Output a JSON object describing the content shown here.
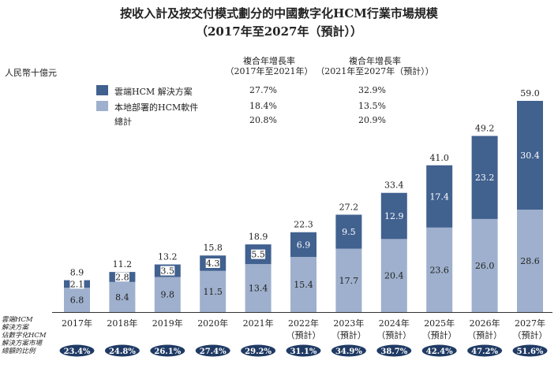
{
  "title_line1": "按收入計及按交付模式劃分的中國數字化HCM行業市場規模",
  "title_line2": "（2017年至2027年（預計））",
  "unit_label": "人民幣十億元",
  "cagr_header_1_line1": "複合年增長率",
  "cagr_header_1_line2": "（2017年至2021年）",
  "cagr_header_2_line1": "複合年增長率",
  "cagr_header_2_line2": "（2021年至2027年（預計））",
  "legend": [
    {
      "label": "雲端HCM 解決方案",
      "cagr1": "27.7%",
      "cagr2": "32.9%",
      "color": "#41618f"
    },
    {
      "label": "本地部署的HCM軟件",
      "cagr1": "18.4%",
      "cagr2": "13.5%",
      "color": "#9eb0cd"
    },
    {
      "label": "總計",
      "cagr1": "20.8%",
      "cagr2": "20.9%"
    }
  ],
  "side_label_line1": "雲端HCM",
  "side_label_line2": "解決方案",
  "side_label_line3": "佔數字化HCM",
  "side_label_line4": "解決方案市場",
  "side_label_line5": "總額的比例",
  "chart_data": {
    "type": "bar",
    "stacked": true,
    "categories": [
      "2017年",
      "2018年",
      "2019年",
      "2020年",
      "2021年",
      "2022年",
      "2023年",
      "2024年",
      "2025年",
      "2026年",
      "2027年"
    ],
    "category_sublabels": [
      "",
      "",
      "",
      "",
      "",
      "（預計）",
      "（預計）",
      "（預計）",
      "（預計）",
      "（預計）",
      "（預計）"
    ],
    "series": [
      {
        "name": "本地部署的HCM軟件",
        "color": "#9eb0cd",
        "values": [
          6.8,
          8.4,
          9.8,
          11.5,
          13.4,
          15.4,
          17.7,
          20.4,
          23.6,
          26.0,
          28.6
        ]
      },
      {
        "name": "雲端HCM 解決方案",
        "color": "#41618f",
        "values": [
          2.1,
          2.8,
          3.5,
          4.3,
          5.5,
          6.9,
          9.5,
          12.9,
          17.4,
          23.2,
          30.4
        ]
      }
    ],
    "totals": [
      "8.9",
      "11.2",
      "13.2",
      "15.8",
      "18.9",
      "22.3",
      "27.2",
      "33.4",
      "41.0",
      "49.2",
      "59.0"
    ],
    "cloud_share": [
      "23.4%",
      "24.8%",
      "26.1%",
      "27.4%",
      "29.2%",
      "31.1%",
      "34.9%",
      "38.7%",
      "42.4%",
      "47.2%",
      "51.6%"
    ],
    "ylim": [
      0,
      59.0
    ],
    "grid": false
  }
}
